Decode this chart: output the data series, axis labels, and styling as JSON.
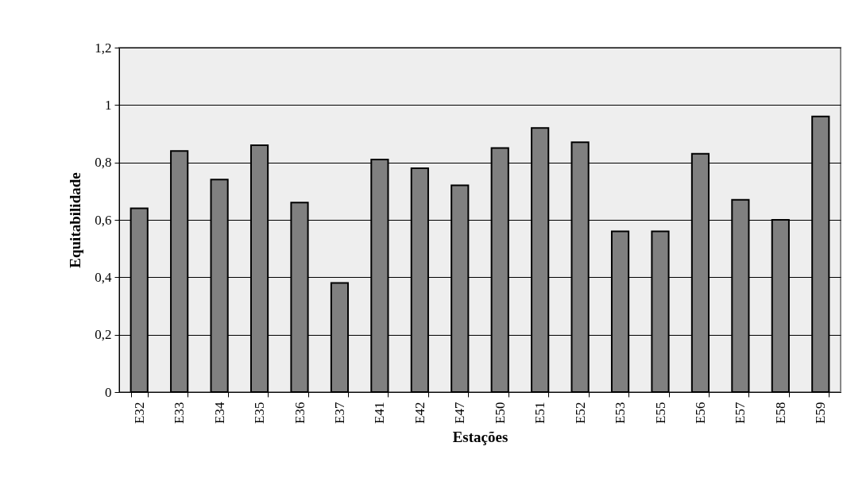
{
  "chart_data": {
    "type": "bar",
    "xlabel": "Estações",
    "ylabel": "Equitabilidade",
    "categories": [
      "E32",
      "E33",
      "E34",
      "E35",
      "E36",
      "E37",
      "E41",
      "E42",
      "E47",
      "E50",
      "E51",
      "E52",
      "E53",
      "E55",
      "E56",
      "E57",
      "E58",
      "E59"
    ],
    "values": [
      0.64,
      0.84,
      0.74,
      0.86,
      0.66,
      0.38,
      0.81,
      0.78,
      0.72,
      0.85,
      0.92,
      0.87,
      0.56,
      0.56,
      0.83,
      0.67,
      0.6,
      0.96
    ],
    "color": "#808080",
    "ylim": [
      0,
      1.2
    ],
    "yticks": [
      0,
      {
        "value": 0.2,
        "label": "0,2"
      },
      {
        "value": 0.4,
        "label": "0,4"
      },
      {
        "value": 0.6,
        "label": "0,6"
      },
      {
        "value": 0.8,
        "label": "0,8"
      },
      1,
      {
        "value": 1.2,
        "label": "1,2"
      }
    ],
    "grid": "y"
  }
}
